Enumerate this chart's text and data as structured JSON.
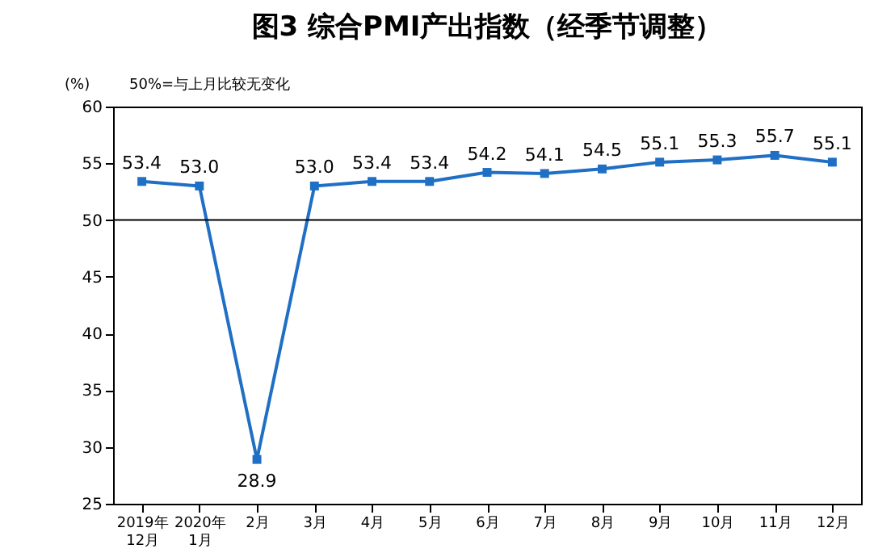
{
  "chart_data": {
    "type": "line",
    "title": "图3 综合PMI产出指数（经季节调整）",
    "categories": [
      "2019年\n12月",
      "2020年\n1月",
      "2月",
      "3月",
      "4月",
      "5月",
      "6月",
      "7月",
      "8月",
      "9月",
      "10月",
      "11月",
      "12月"
    ],
    "series": [
      {
        "color": "#1f6fc5",
        "values": [
          53.4,
          53.0,
          28.9,
          53.0,
          53.4,
          53.4,
          54.2,
          54.1,
          54.5,
          55.1,
          55.3,
          55.7,
          55.1
        ],
        "value_labels": [
          "53.4",
          "53.0",
          "28.9",
          "53.0",
          "53.4",
          "53.4",
          "54.2",
          "54.1",
          "54.5",
          "55.1",
          "55.3",
          "55.7",
          "55.1"
        ]
      }
    ],
    "ylim": [
      25,
      60
    ],
    "yticks": [
      25,
      30,
      35,
      40,
      45,
      50,
      55,
      60
    ],
    "ref_lines": [
      {
        "axis": "y",
        "value": 50,
        "color": "#000000"
      }
    ],
    "annotations": [
      "(%)",
      "50%=与上月比较无变化"
    ],
    "marker": "square",
    "line_style": "solid",
    "grid": false
  }
}
